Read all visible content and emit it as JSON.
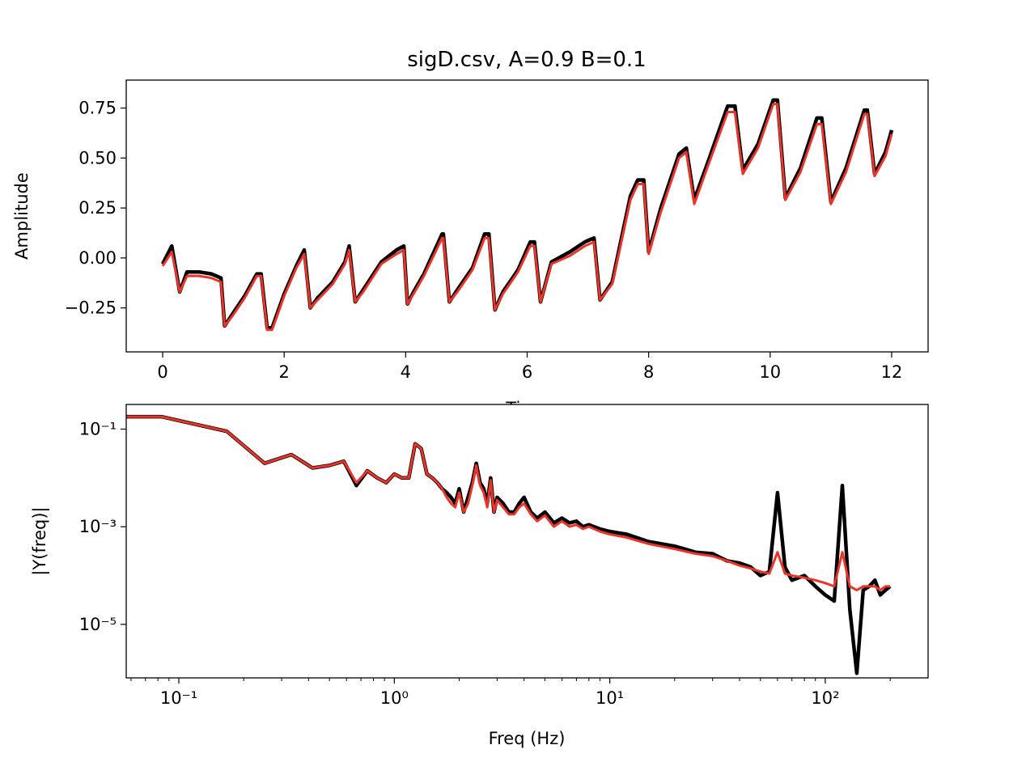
{
  "chart_data": [
    {
      "type": "line",
      "title": "sigD.csv, A=0.9 B=0.1",
      "xlabel": "Time",
      "ylabel": "Amplitude",
      "xlim": [
        -0.6,
        12.6
      ],
      "ylim": [
        -0.47,
        0.89
      ],
      "xticks": [
        0,
        2,
        4,
        6,
        8,
        10,
        12
      ],
      "xtick_labels": [
        "0",
        "2",
        "4",
        "6",
        "8",
        "10",
        "12"
      ],
      "yticks": [
        -0.25,
        0.0,
        0.25,
        0.5,
        0.75
      ],
      "ytick_labels": [
        "−0.25",
        "0.00",
        "0.25",
        "0.50",
        "0.75"
      ],
      "grid": false,
      "series": [
        {
          "color": "#000000",
          "x": [
            0.0,
            0.15,
            0.28,
            0.4,
            0.6,
            0.8,
            0.96,
            1.02,
            1.15,
            1.35,
            1.55,
            1.62,
            1.72,
            1.8,
            2.0,
            2.2,
            2.33,
            2.43,
            2.55,
            2.8,
            3.0,
            3.07,
            3.17,
            3.3,
            3.6,
            3.85,
            3.97,
            4.03,
            4.13,
            4.3,
            4.6,
            4.62,
            4.72,
            4.85,
            5.1,
            5.3,
            5.37,
            5.47,
            5.6,
            5.85,
            6.05,
            6.12,
            6.22,
            6.4,
            6.7,
            6.95,
            7.1,
            7.2,
            7.4,
            7.7,
            7.82,
            7.92,
            8.0,
            8.2,
            8.5,
            8.62,
            8.75,
            9.0,
            9.3,
            9.42,
            9.55,
            9.8,
            10.05,
            10.12,
            10.25,
            10.5,
            10.77,
            10.85,
            11.0,
            11.25,
            11.55,
            11.6,
            11.72,
            11.9,
            12.0
          ],
          "y": [
            -0.03,
            0.06,
            -0.17,
            -0.07,
            -0.07,
            -0.08,
            -0.1,
            -0.34,
            -0.28,
            -0.19,
            -0.08,
            -0.08,
            -0.35,
            -0.35,
            -0.18,
            -0.04,
            0.04,
            -0.25,
            -0.2,
            -0.12,
            -0.02,
            0.06,
            -0.22,
            -0.16,
            -0.02,
            0.04,
            0.06,
            -0.23,
            -0.17,
            -0.08,
            0.12,
            0.12,
            -0.22,
            -0.16,
            -0.05,
            0.12,
            0.12,
            -0.26,
            -0.17,
            -0.06,
            0.08,
            0.08,
            -0.22,
            -0.02,
            0.03,
            0.08,
            0.1,
            -0.21,
            -0.12,
            0.31,
            0.39,
            0.39,
            0.03,
            0.25,
            0.52,
            0.55,
            0.29,
            0.5,
            0.76,
            0.76,
            0.44,
            0.57,
            0.79,
            0.79,
            0.3,
            0.45,
            0.7,
            0.7,
            0.28,
            0.45,
            0.74,
            0.74,
            0.42,
            0.53,
            0.64
          ]
        },
        {
          "color": "#e8352a",
          "x": [
            0.0,
            0.15,
            0.28,
            0.4,
            0.6,
            0.8,
            0.96,
            1.02,
            1.15,
            1.35,
            1.55,
            1.62,
            1.72,
            1.8,
            2.0,
            2.2,
            2.33,
            2.43,
            2.55,
            2.8,
            3.0,
            3.07,
            3.17,
            3.3,
            3.6,
            3.85,
            3.97,
            4.03,
            4.13,
            4.3,
            4.6,
            4.62,
            4.72,
            4.85,
            5.1,
            5.3,
            5.37,
            5.47,
            5.6,
            5.85,
            6.05,
            6.12,
            6.22,
            6.4,
            6.7,
            6.95,
            7.1,
            7.2,
            7.4,
            7.7,
            7.82,
            7.92,
            8.0,
            8.2,
            8.5,
            8.62,
            8.75,
            9.0,
            9.3,
            9.42,
            9.55,
            9.8,
            10.05,
            10.12,
            10.25,
            10.5,
            10.77,
            10.85,
            11.0,
            11.25,
            11.55,
            11.6,
            11.72,
            11.9,
            12.0
          ],
          "y": [
            -0.04,
            0.03,
            -0.17,
            -0.09,
            -0.09,
            -0.1,
            -0.12,
            -0.34,
            -0.29,
            -0.2,
            -0.09,
            -0.09,
            -0.36,
            -0.36,
            -0.19,
            -0.05,
            0.02,
            -0.25,
            -0.21,
            -0.13,
            -0.03,
            0.04,
            -0.22,
            -0.17,
            -0.03,
            0.02,
            0.04,
            -0.23,
            -0.18,
            -0.09,
            0.1,
            0.1,
            -0.22,
            -0.17,
            -0.06,
            0.1,
            0.1,
            -0.26,
            -0.18,
            -0.07,
            0.06,
            0.06,
            -0.22,
            -0.03,
            0.01,
            0.06,
            0.08,
            -0.21,
            -0.13,
            0.29,
            0.37,
            0.37,
            0.02,
            0.23,
            0.5,
            0.53,
            0.27,
            0.48,
            0.73,
            0.73,
            0.42,
            0.55,
            0.77,
            0.77,
            0.29,
            0.43,
            0.67,
            0.67,
            0.27,
            0.43,
            0.72,
            0.72,
            0.41,
            0.51,
            0.62
          ]
        }
      ]
    },
    {
      "type": "line",
      "title": "",
      "xlabel": "Freq (Hz)",
      "ylabel": "|Y(freq)|",
      "xscale": "log",
      "yscale": "log",
      "xlim": [
        0.057,
        300
      ],
      "ylim": [
        8e-07,
        0.32
      ],
      "xticks": [
        0.1,
        1,
        10,
        100
      ],
      "xtick_labels": [
        "10⁻¹",
        "10⁰",
        "10¹",
        "10²"
      ],
      "yticks": [
        1e-05,
        0.001,
        0.1
      ],
      "ytick_labels": [
        "10⁻⁵",
        "10⁻³",
        "10⁻¹"
      ],
      "grid": false,
      "series": [
        {
          "color": "#000000",
          "x": [
            0.057,
            0.083,
            0.167,
            0.25,
            0.333,
            0.417,
            0.5,
            0.583,
            0.667,
            0.75,
            0.833,
            0.917,
            1.0,
            1.083,
            1.167,
            1.25,
            1.333,
            1.417,
            1.5,
            1.583,
            1.667,
            1.75,
            1.833,
            1.917,
            2.0,
            2.1,
            2.2,
            2.3,
            2.4,
            2.5,
            2.6,
            2.7,
            2.8,
            2.9,
            3.0,
            3.2,
            3.4,
            3.6,
            3.8,
            4.0,
            4.3,
            4.6,
            5.0,
            5.5,
            6.0,
            6.5,
            7.0,
            7.5,
            8.0,
            9.0,
            10,
            12,
            15,
            20,
            25,
            30,
            35,
            40,
            45,
            50,
            55,
            60,
            65,
            70,
            80,
            90,
            100,
            110,
            120,
            130,
            140,
            150,
            160,
            170,
            180,
            190,
            200
          ],
          "y": [
            0.18,
            0.18,
            0.09,
            0.02,
            0.03,
            0.016,
            0.018,
            0.022,
            0.007,
            0.014,
            0.01,
            0.008,
            0.012,
            0.01,
            0.01,
            0.05,
            0.04,
            0.012,
            0.01,
            0.008,
            0.006,
            0.005,
            0.004,
            0.003,
            0.006,
            0.002,
            0.004,
            0.008,
            0.02,
            0.008,
            0.006,
            0.003,
            0.01,
            0.002,
            0.004,
            0.003,
            0.002,
            0.002,
            0.003,
            0.004,
            0.002,
            0.0015,
            0.002,
            0.0012,
            0.0015,
            0.0012,
            0.0013,
            0.001,
            0.0011,
            0.0009,
            0.0008,
            0.0007,
            0.0005,
            0.0004,
            0.0003,
            0.00028,
            0.0002,
            0.00018,
            0.00015,
            0.0001,
            0.00012,
            0.005,
            0.00015,
            8e-05,
            0.0001,
            6e-05,
            4e-05,
            3e-05,
            0.007,
            2e-05,
            1e-06,
            5e-05,
            6e-05,
            8e-05,
            4e-05,
            5e-05,
            6e-05
          ]
        },
        {
          "color": "#e8352a",
          "x": [
            0.057,
            0.083,
            0.167,
            0.25,
            0.333,
            0.417,
            0.5,
            0.583,
            0.667,
            0.75,
            0.833,
            0.917,
            1.0,
            1.083,
            1.167,
            1.25,
            1.333,
            1.417,
            1.5,
            1.583,
            1.667,
            1.75,
            1.833,
            1.917,
            2.0,
            2.1,
            2.2,
            2.3,
            2.4,
            2.5,
            2.6,
            2.7,
            2.8,
            2.9,
            3.0,
            3.2,
            3.4,
            3.6,
            3.8,
            4.0,
            4.3,
            4.6,
            5.0,
            5.5,
            6.0,
            6.5,
            7.0,
            7.5,
            8.0,
            9.0,
            10,
            12,
            15,
            20,
            25,
            30,
            35,
            40,
            45,
            50,
            55,
            60,
            65,
            70,
            80,
            90,
            100,
            110,
            120,
            130,
            140,
            150,
            160,
            170,
            180,
            190,
            200
          ],
          "y": [
            0.18,
            0.18,
            0.09,
            0.02,
            0.03,
            0.016,
            0.018,
            0.022,
            0.008,
            0.014,
            0.01,
            0.008,
            0.012,
            0.01,
            0.01,
            0.05,
            0.04,
            0.012,
            0.01,
            0.008,
            0.006,
            0.004,
            0.003,
            0.0025,
            0.005,
            0.002,
            0.003,
            0.007,
            0.018,
            0.007,
            0.005,
            0.0025,
            0.009,
            0.002,
            0.0035,
            0.0025,
            0.0018,
            0.0018,
            0.0025,
            0.003,
            0.0018,
            0.0013,
            0.0017,
            0.001,
            0.0013,
            0.001,
            0.0011,
            0.0009,
            0.001,
            0.0008,
            0.0007,
            0.0006,
            0.00045,
            0.00035,
            0.00028,
            0.00025,
            0.0002,
            0.00016,
            0.00014,
            0.00012,
            0.00011,
            0.0003,
            0.00011,
            0.0001,
            9e-05,
            8e-05,
            7e-05,
            6e-05,
            0.0003,
            6e-05,
            5e-05,
            6e-05,
            6e-05,
            6e-05,
            5e-05,
            6e-05,
            6e-05
          ]
        }
      ]
    }
  ]
}
